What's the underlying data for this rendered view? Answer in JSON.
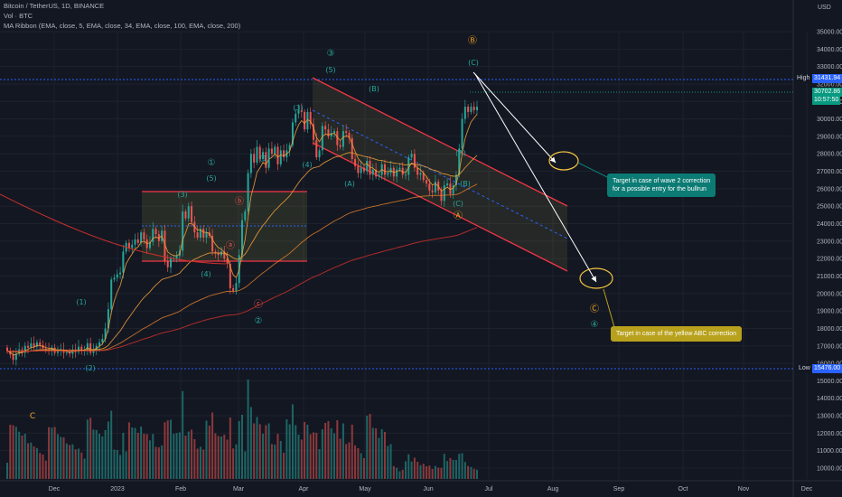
{
  "header": {
    "symbol_line": "Bitcoin / TetherUS, 1D, BINANCE",
    "vol_line": "Vol · BTC",
    "ma_line": "MA Ribbon (EMA, close, 5, EMA, close, 34, EMA, close, 100, EMA, close, 200)"
  },
  "price_axis": {
    "currency": "USD",
    "ticks": [
      35000,
      34000,
      33000,
      32000,
      31000,
      30000,
      29000,
      28000,
      27000,
      26000,
      25000,
      24000,
      23000,
      22000,
      21000,
      20000,
      19000,
      18000,
      17000,
      16000,
      15000,
      14000,
      13000,
      12000,
      11000,
      10000
    ]
  },
  "price_axis_labels": [
    "35000.00",
    "34000.00",
    "33000.00",
    "32000.00",
    "31000.00",
    "30000.00",
    "29000.00",
    "28000.00",
    "27000.00",
    "26000.00",
    "25000.00",
    "24000.00",
    "23000.00",
    "22000.00",
    "21000.00",
    "20000.00",
    "19000.00",
    "18000.00",
    "17000.00",
    "16000.00",
    "15000.00",
    "14000.00",
    "13000.00",
    "12000.00",
    "11000.00",
    "10000.00"
  ],
  "markers": {
    "high_label": "High",
    "high_value": "31431.94",
    "low_label": "Low",
    "low_value": "15476.00",
    "last_price": "30702.86",
    "countdown": "10:57:50",
    "high_color": "#2962ff",
    "last_color": "#089981"
  },
  "time_axis": [
    "Dec",
    "2023",
    "Feb",
    "Mar",
    "Apr",
    "May",
    "Jun",
    "Jul",
    "Aug",
    "Sep",
    "Oct",
    "Nov",
    "Dec"
  ],
  "wave_labels": [
    {
      "text": "③",
      "color": "#26a69a"
    },
    {
      "text": "(5)",
      "color": "#26a69a"
    },
    {
      "text": "(3)",
      "color": "#26a69a"
    },
    {
      "text": "(4)",
      "color": "#26a69a"
    },
    {
      "text": "(B)",
      "color": "#26a69a"
    },
    {
      "text": "(A)",
      "color": "#26a69a"
    },
    {
      "text": "(A)",
      "color": "#26a69a"
    },
    {
      "text": "(B)",
      "color": "#26a69a"
    },
    {
      "text": "(C)",
      "color": "#26a69a"
    },
    {
      "text": "Ⓐ",
      "color": "#f5a623"
    },
    {
      "text": "Ⓑ",
      "color": "#f5a623"
    },
    {
      "text": "(C)",
      "color": "#26a69a"
    },
    {
      "text": "①",
      "color": "#26a69a"
    },
    {
      "text": "(5)",
      "color": "#26a69a"
    },
    {
      "text": "(3)",
      "color": "#26a69a"
    },
    {
      "text": "ⓑ",
      "color": "#ef5350"
    },
    {
      "text": "ⓐ",
      "color": "#ef5350"
    },
    {
      "text": "(4)",
      "color": "#26a69a"
    },
    {
      "text": "ⓒ",
      "color": "#ef5350"
    },
    {
      "text": "②",
      "color": "#26a69a"
    },
    {
      "text": "(1)",
      "color": "#26a69a"
    },
    {
      "text": "(2)",
      "color": "#26a69a"
    },
    {
      "text": "C",
      "color": "#f5a623"
    },
    {
      "text": "Ⓒ",
      "color": "#f5a623"
    },
    {
      "text": "④",
      "color": "#26a69a"
    },
    {
      "text": "(1)",
      "color": "#26a69a"
    }
  ],
  "callouts": {
    "green_text_1": "Target in case of wave 2 correction",
    "green_text_2": "for a possible entry for the bullrun",
    "yellow_text": "Target in case of the yellow ABC correction",
    "green_color": "#0c7b74",
    "yellow_color": "#b8a11c"
  },
  "chart_data": {
    "type": "candlestick",
    "title": "Bitcoin / TetherUS, 1D, BINANCE",
    "ylim": [
      10000,
      35500
    ],
    "x_range": [
      "2022-11-18",
      "2023-12-05"
    ],
    "candles_close": [
      16700,
      16500,
      16200,
      16550,
      16800,
      16600,
      17000,
      16900,
      17150,
      16950,
      17200,
      17050,
      16850,
      16800,
      16750,
      16900,
      16600,
      16700,
      16800,
      16600,
      16650,
      16550,
      16800,
      16650,
      16950,
      16700,
      16800,
      17150,
      16600,
      16750,
      17000,
      17200,
      17400,
      18000,
      19100,
      20800,
      20900,
      21100,
      21200,
      22400,
      22900,
      22600,
      22800,
      23100,
      22900,
      23500,
      23100,
      22600,
      22950,
      23700,
      23400,
      23000,
      23600,
      21850,
      21500,
      22000,
      22000,
      22150,
      22450,
      24700,
      24300,
      25000,
      24100,
      23500,
      23200,
      23700,
      23200,
      23500,
      23300,
      22400,
      22300,
      22200,
      22400,
      22000,
      21700,
      20300,
      20150,
      20600,
      22200,
      24200,
      24700,
      26900,
      28000,
      27500,
      28400,
      27700,
      28100,
      27200,
      28300,
      28000,
      28400,
      27400,
      28200,
      27800,
      28200,
      28500,
      29800,
      30300,
      30500,
      30400,
      29400,
      30400,
      29700,
      28800,
      27800,
      28200,
      29600,
      29400,
      29000,
      29200,
      29300,
      28500,
      28400,
      29300,
      29200,
      28900,
      27700,
      27300,
      26900,
      27200,
      27000,
      27600,
      26800,
      27100,
      26700,
      26800,
      27400,
      26800,
      26900,
      27200,
      26700,
      27100,
      27200,
      26800,
      26800,
      27800,
      28000,
      27200,
      26800,
      26900,
      26500,
      26300,
      25900,
      25800,
      26400,
      25900,
      25300,
      26200,
      26300,
      25700,
      26200,
      26800,
      28300,
      30000,
      30700,
      30400,
      30700,
      30500,
      30700
    ]
  }
}
